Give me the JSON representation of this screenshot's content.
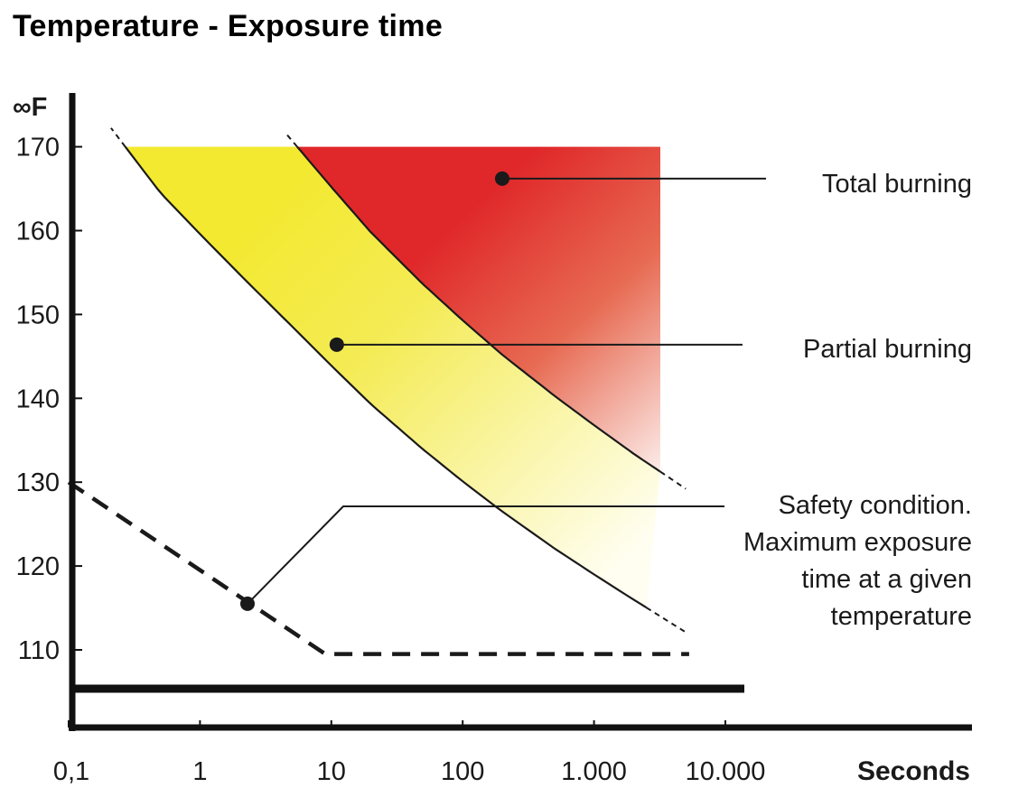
{
  "title": "Temperature - Exposure time",
  "chart_data": {
    "type": "area",
    "title": "Temperature - Exposure time",
    "xlabel": "Seconds",
    "ylabel": "∞F",
    "x_scale": "log",
    "xlim": [
      0.1,
      10000
    ],
    "ylim": [
      105,
      175
    ],
    "x_ticks": [
      {
        "value": 0.1,
        "label": "0,1"
      },
      {
        "value": 1,
        "label": "1"
      },
      {
        "value": 10,
        "label": "10"
      },
      {
        "value": 100,
        "label": "100"
      },
      {
        "value": 1000,
        "label": "1.000"
      },
      {
        "value": 10000,
        "label": "10.000"
      }
    ],
    "y_ticks": [
      {
        "value": 110,
        "label": "110"
      },
      {
        "value": 120,
        "label": "120"
      },
      {
        "value": 130,
        "label": "130"
      },
      {
        "value": 140,
        "label": "140"
      },
      {
        "value": 150,
        "label": "150"
      },
      {
        "value": 160,
        "label": "160"
      },
      {
        "value": 170,
        "label": "170"
      }
    ],
    "grid": false,
    "colors": {
      "partial_burning": "#f1e62c",
      "total_burning": "#e0282a",
      "safety_line": "#1a1a1a"
    },
    "series": [
      {
        "name": "Partial burning",
        "label": "Partial burning",
        "kind": "boundary-curve",
        "x": [
          0.27,
          0.5,
          1,
          2,
          5,
          10,
          20,
          50,
          100,
          200,
          500,
          1000,
          2000,
          5000
        ],
        "y": [
          170,
          164.5,
          159.6,
          154.8,
          148.6,
          143.9,
          139.3,
          133.9,
          130.1,
          126.5,
          122.1,
          119.0,
          116.0,
          112.1
        ]
      },
      {
        "name": "Total burning",
        "label": "Total burning",
        "kind": "boundary-curve",
        "x": [
          5.5,
          10,
          20,
          50,
          100,
          200,
          500,
          1000,
          2000,
          5000
        ],
        "y": [
          170,
          165.2,
          159.8,
          153.6,
          149.3,
          145.2,
          140.3,
          136.8,
          133.4,
          129.2
        ]
      },
      {
        "name": "Safety condition. Maximum exposure time at a given temperature",
        "label": "Safety condition. Maximum exposure time at a given temperature",
        "kind": "dashed-line",
        "x": [
          0.1,
          9,
          10000
        ],
        "y": [
          130,
          109.5,
          109.5
        ]
      }
    ],
    "regions": [
      {
        "name": "Partial burning",
        "bounded_by": [
          "Partial burning",
          "Total burning"
        ],
        "y_max": 170
      },
      {
        "name": "Total burning",
        "bounded_by": [
          "Total burning"
        ],
        "x_max": 3200,
        "y_max": 170
      }
    ],
    "annotations": [
      {
        "text": "Total burning",
        "x": 200,
        "y": 166.2
      },
      {
        "text": "Partial burning",
        "x": 11,
        "y": 146.4
      },
      {
        "text": "Safety condition.",
        "x": 2.3,
        "y": 115.5
      },
      {
        "text": "Maximum exposure",
        "x": 2.3,
        "y": 115.5
      },
      {
        "text": "time at a given",
        "x": 2.3,
        "y": 115.5
      },
      {
        "text": "temperature",
        "x": 2.3,
        "y": 115.5
      }
    ]
  }
}
